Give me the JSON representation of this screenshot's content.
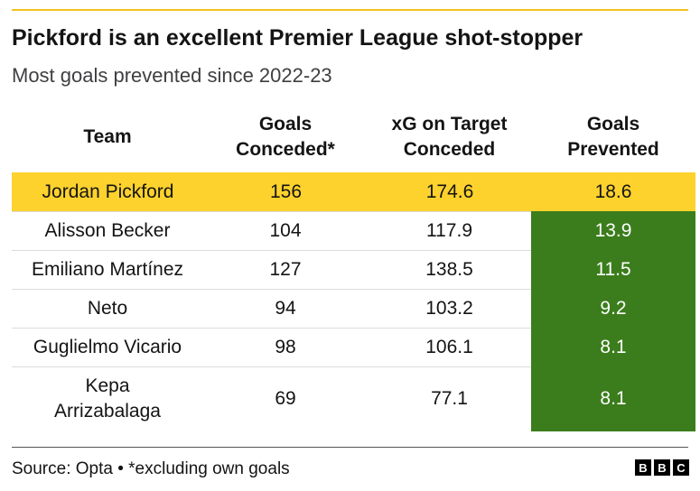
{
  "header": {
    "title": "Pickford is an excellent Premier League shot-stopper",
    "subtitle": "Most goals prevented since 2022-23"
  },
  "table": {
    "columns": [
      [
        "Team"
      ],
      [
        "Goals",
        "Conceded*"
      ],
      [
        "xG on Target",
        "Conceded"
      ],
      [
        "Goals",
        "Prevented"
      ]
    ],
    "rows": [
      [
        "Jordan Pickford",
        156,
        174.6,
        18.6
      ],
      [
        "Alisson Becker",
        104,
        117.9,
        13.9
      ],
      [
        "Emiliano Martínez",
        127,
        138.5,
        11.5
      ],
      [
        "Neto",
        94,
        103.2,
        9.2
      ],
      [
        "Guglielmo Vicario",
        98,
        106.1,
        8.1
      ],
      [
        "Kepa Arrizabalaga",
        69,
        77.1,
        8.1
      ]
    ]
  },
  "footer": {
    "source": "Source: Opta • *excluding own goals",
    "logo": [
      "B",
      "B",
      "C"
    ]
  }
}
